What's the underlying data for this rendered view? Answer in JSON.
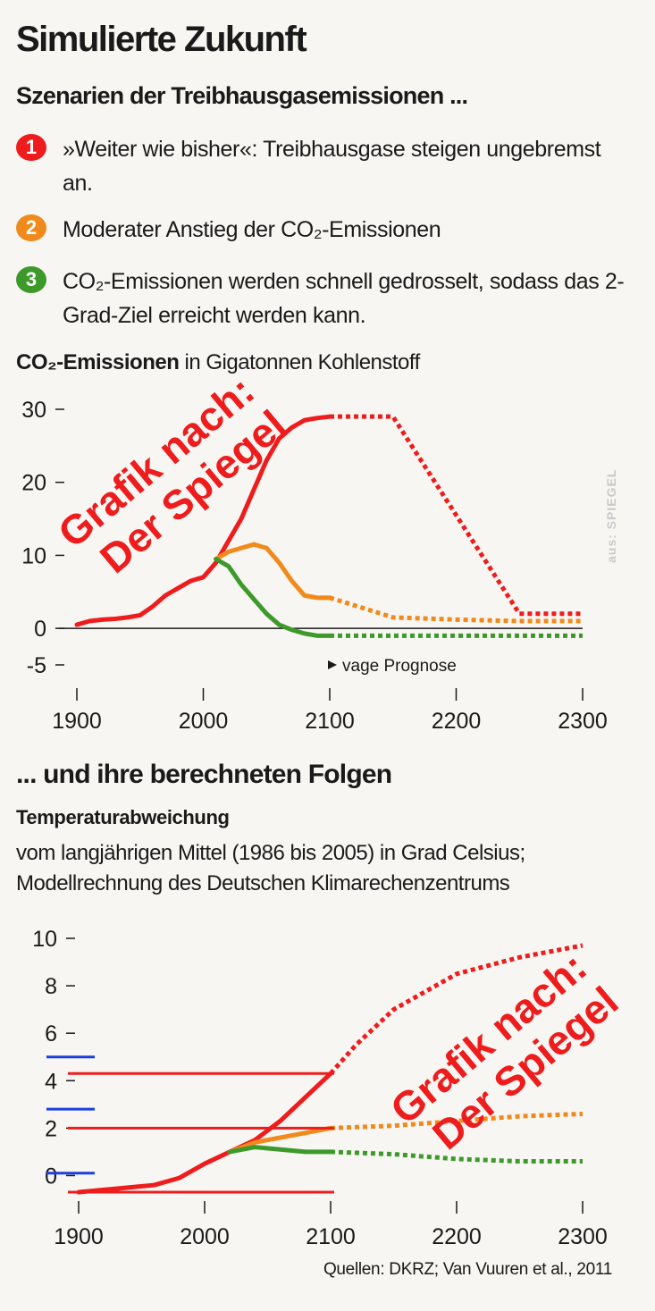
{
  "title": "Simulierte Zukunft",
  "subtitle": "Szenarien der Treibhausgasemissionen ...",
  "scenarios": [
    {
      "number": "1",
      "color": "#ee1c1c",
      "text": "»Weiter wie bisher«: Treibhausgase steigen ungebremst an."
    },
    {
      "number": "2",
      "color": "#f08a1c",
      "text": "Moderater Anstieg der CO₂-Emissionen"
    },
    {
      "number": "3",
      "color": "#3d9a2a",
      "text": "CO₂-Emissionen werden schnell gedrosselt, sodass das 2-Grad-Ziel erreicht werden kann."
    }
  ],
  "chart1_title_bold": "CO₂-Emissionen",
  "chart1_title_rest": " in Gigatonnen Kohlenstoff",
  "section2_title": "... und ihre berechneten Folgen",
  "chart2_title": "Temperaturabweichung",
  "chart2_subtitle": "vom langjährigen Mittel (1986 bis 2005) in Grad Celsius; Modellrechnung des Deutschen Klimarechenzentrums",
  "sources": "Quellen: DKRZ; Van Vuuren et al., 2011",
  "watermark": "aus: SPIEGEL",
  "overlay_text": "Grafik nach: Der Spiegel",
  "chart_data": [
    {
      "type": "line",
      "xlim": [
        1900,
        2300
      ],
      "ylim": [
        -5,
        30
      ],
      "xticks": [
        1900,
        2000,
        2100,
        2200,
        2300
      ],
      "yticks": [
        30,
        20,
        10,
        0,
        -5
      ],
      "annotation": "vage Prognose",
      "projection_start": 2100,
      "colors": {
        "red": "#ee1c1c",
        "orange": "#f08a1c",
        "green": "#3d9a2a"
      },
      "series": [
        {
          "color": "red",
          "x": [
            1900,
            1910,
            1920,
            1930,
            1940,
            1950,
            1960,
            1970,
            1980,
            1990,
            2000,
            2010,
            2020,
            2030,
            2040,
            2050,
            2060,
            2070,
            2080,
            2090,
            2100,
            2150,
            2250,
            2300
          ],
          "y": [
            0.5,
            1,
            1.2,
            1.3,
            1.5,
            1.8,
            3,
            4.5,
            5.5,
            6.5,
            7,
            9,
            12,
            15,
            19,
            23,
            26,
            27.5,
            28.5,
            28.8,
            29,
            29,
            2,
            2
          ]
        },
        {
          "color": "orange",
          "x": [
            2010,
            2020,
            2030,
            2040,
            2050,
            2060,
            2070,
            2080,
            2090,
            2100,
            2150,
            2200,
            2250,
            2300
          ],
          "y": [
            9.5,
            10.5,
            11,
            11.5,
            11,
            9,
            6.5,
            4.5,
            4.2,
            4.2,
            1.5,
            1.2,
            1,
            1
          ]
        },
        {
          "color": "green",
          "x": [
            2010,
            2020,
            2030,
            2040,
            2050,
            2060,
            2070,
            2080,
            2090,
            2100,
            2150,
            2200,
            2300
          ],
          "y": [
            9.5,
            8.5,
            6,
            4,
            2,
            0.5,
            -0.2,
            -0.7,
            -1,
            -1,
            -1,
            -1,
            -1
          ]
        }
      ]
    },
    {
      "type": "line",
      "xlim": [
        1900,
        2300
      ],
      "ylim": [
        -1,
        10
      ],
      "xticks": [
        1900,
        2000,
        2100,
        2200,
        2300
      ],
      "yticks": [
        10,
        8,
        6,
        4,
        2,
        0
      ],
      "projection_start": 2100,
      "colors": {
        "red": "#ee1c1c",
        "orange": "#f08a1c",
        "green": "#3d9a2a"
      },
      "series": [
        {
          "color": "red",
          "x": [
            1900,
            1920,
            1940,
            1960,
            1980,
            2000,
            2020,
            2040,
            2060,
            2080,
            2100,
            2120,
            2150,
            2200,
            2250,
            2300
          ],
          "y": [
            -0.7,
            -0.6,
            -0.5,
            -0.4,
            -0.1,
            0.5,
            1.0,
            1.5,
            2.3,
            3.3,
            4.3,
            5.5,
            7.0,
            8.5,
            9.2,
            9.7
          ]
        },
        {
          "color": "orange",
          "x": [
            2020,
            2040,
            2060,
            2080,
            2100,
            2150,
            2200,
            2250,
            2300
          ],
          "y": [
            1.0,
            1.4,
            1.6,
            1.8,
            2.0,
            2.1,
            2.3,
            2.5,
            2.6
          ]
        },
        {
          "color": "green",
          "x": [
            2020,
            2040,
            2060,
            2080,
            2100,
            2150,
            2200,
            2250,
            2300
          ],
          "y": [
            1.0,
            1.2,
            1.1,
            1.0,
            1.0,
            0.9,
            0.7,
            0.6,
            0.6
          ]
        }
      ]
    }
  ]
}
